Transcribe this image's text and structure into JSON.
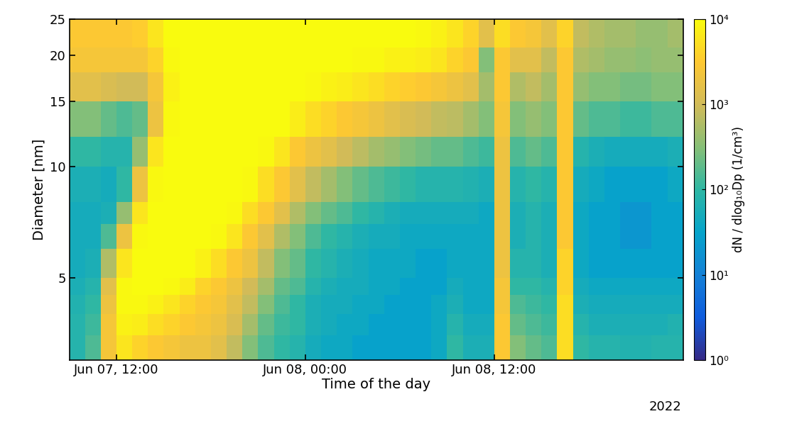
{
  "chart_data": {
    "type": "heatmap",
    "x_label": "Time of the day",
    "y_label": "Diameter [nm]",
    "annotation": "2022",
    "log": "y",
    "xlim": [
      "2022-06-07 09:00",
      "2022-06-09 00:00"
    ],
    "xticks": [
      {
        "value": "2022-06-07 12:00",
        "label": "Jun 07, 12:00"
      },
      {
        "value": "2022-06-08 00:00",
        "label": "Jun 08, 00:00"
      },
      {
        "value": "2022-06-08 12:00",
        "label": "Jun 08, 12:00"
      }
    ],
    "ylim": [
      3,
      25
    ],
    "yticks": [
      5,
      10,
      15,
      20,
      25
    ],
    "colorbar": {
      "label": "dN / dlog₁₀Dp (1/cm³)",
      "log": true,
      "range": [
        1,
        10000
      ],
      "ticks": [
        {
          "value": 1,
          "label": "10⁰"
        },
        {
          "value": 10,
          "label": "10¹"
        },
        {
          "value": 100,
          "label": "10²"
        },
        {
          "value": 1000,
          "label": "10³"
        },
        {
          "value": 10000,
          "label": "10⁴"
        }
      ]
    },
    "time_edges": [
      "2022-06-07 09:00",
      "2022-06-07 10:00",
      "2022-06-07 11:00",
      "2022-06-07 12:00",
      "2022-06-07 13:00",
      "2022-06-07 14:00",
      "2022-06-07 15:00",
      "2022-06-07 16:00",
      "2022-06-07 17:00",
      "2022-06-07 18:00",
      "2022-06-07 19:00",
      "2022-06-07 20:00",
      "2022-06-07 21:00",
      "2022-06-07 22:00",
      "2022-06-07 23:00",
      "2022-06-08 00:00",
      "2022-06-08 01:00",
      "2022-06-08 02:00",
      "2022-06-08 03:00",
      "2022-06-08 04:00",
      "2022-06-08 05:00",
      "2022-06-08 06:00",
      "2022-06-08 07:00",
      "2022-06-08 08:00",
      "2022-06-08 09:00",
      "2022-06-08 10:00",
      "2022-06-08 11:00",
      "2022-06-08 12:00",
      "2022-06-08 13:00",
      "2022-06-08 14:00",
      "2022-06-08 15:00",
      "2022-06-08 16:00",
      "2022-06-08 17:00",
      "2022-06-08 18:00",
      "2022-06-08 19:00",
      "2022-06-08 20:00",
      "2022-06-08 21:00",
      "2022-06-08 22:00",
      "2022-06-08 23:00",
      "2022-06-09 00:00"
    ],
    "diameter_edges": [
      3,
      3.5,
      4,
      4.5,
      5,
      6,
      7,
      8,
      10,
      12,
      15,
      18,
      21,
      25
    ],
    "values": [
      [
        80,
        80,
        70,
        60,
        50,
        50,
        50,
        60,
        100,
        300,
        1500,
        2500,
        3000
      ],
      [
        150,
        120,
        100,
        80,
        60,
        50,
        50,
        60,
        100,
        300,
        1500,
        2500,
        3000
      ],
      [
        2500,
        2500,
        2000,
        1500,
        600,
        150,
        60,
        50,
        80,
        200,
        1200,
        2500,
        3000
      ],
      [
        6000,
        8000,
        9000,
        9000,
        6000,
        2000,
        400,
        100,
        80,
        150,
        1000,
        2500,
        3000
      ],
      [
        4000,
        7000,
        9000,
        10000,
        10000,
        9000,
        6000,
        2000,
        400,
        200,
        1000,
        2500,
        3500
      ],
      [
        3000,
        5000,
        8000,
        10000,
        10000,
        10000,
        10000,
        9000,
        6000,
        2000,
        2500,
        4000,
        6000
      ],
      [
        2500,
        4000,
        6000,
        9000,
        10000,
        10000,
        10000,
        10000,
        10000,
        9000,
        8000,
        9000,
        10000
      ],
      [
        2000,
        3000,
        4000,
        7000,
        10000,
        10000,
        10000,
        10000,
        10000,
        10000,
        10000,
        10000,
        10000
      ],
      [
        2000,
        2500,
        3000,
        4000,
        8000,
        10000,
        10000,
        10000,
        10000,
        10000,
        10000,
        10000,
        10000
      ],
      [
        1500,
        2000,
        2500,
        3000,
        5000,
        9000,
        10000,
        10000,
        10000,
        10000,
        10000,
        10000,
        10000
      ],
      [
        800,
        1200,
        1500,
        2000,
        3000,
        6000,
        9000,
        10000,
        10000,
        10000,
        10000,
        10000,
        10000
      ],
      [
        300,
        500,
        800,
        1000,
        2000,
        3000,
        5000,
        9000,
        10000,
        10000,
        10000,
        10000,
        10000
      ],
      [
        150,
        200,
        300,
        500,
        800,
        1500,
        3000,
        5000,
        9000,
        10000,
        10000,
        10000,
        10000
      ],
      [
        100,
        120,
        150,
        200,
        300,
        600,
        1500,
        3000,
        6000,
        10000,
        10000,
        10000,
        10000
      ],
      [
        80,
        100,
        100,
        150,
        200,
        300,
        600,
        1500,
        3000,
        7000,
        10000,
        10000,
        10000
      ],
      [
        50,
        60,
        60,
        80,
        100,
        150,
        300,
        800,
        2000,
        5000,
        9000,
        10000,
        10000
      ],
      [
        40,
        50,
        50,
        60,
        80,
        100,
        200,
        500,
        1500,
        4000,
        8000,
        10000,
        10000
      ],
      [
        40,
        40,
        50,
        50,
        60,
        80,
        150,
        300,
        1000,
        3000,
        7000,
        10000,
        10000
      ],
      [
        30,
        40,
        40,
        50,
        50,
        60,
        100,
        200,
        700,
        2500,
        6000,
        9000,
        10000
      ],
      [
        30,
        30,
        40,
        40,
        40,
        50,
        80,
        150,
        500,
        2000,
        5000,
        9000,
        10000
      ],
      [
        30,
        30,
        30,
        40,
        40,
        50,
        60,
        120,
        400,
        1500,
        4000,
        8000,
        10000
      ],
      [
        30,
        30,
        30,
        30,
        40,
        40,
        50,
        100,
        300,
        1200,
        3500,
        8000,
        10000
      ],
      [
        30,
        30,
        30,
        30,
        30,
        40,
        50,
        80,
        250,
        1000,
        3000,
        7000,
        9000
      ],
      [
        40,
        40,
        40,
        30,
        30,
        40,
        50,
        80,
        200,
        800,
        2500,
        6000,
        8000
      ],
      [
        100,
        80,
        60,
        50,
        40,
        40,
        50,
        80,
        200,
        700,
        2000,
        4000,
        6000
      ],
      [
        60,
        50,
        40,
        40,
        40,
        40,
        50,
        70,
        150,
        500,
        1500,
        3000,
        4000
      ],
      [
        60,
        50,
        40,
        40,
        40,
        40,
        40,
        60,
        120,
        300,
        500,
        300,
        1500
      ],
      [
        3000,
        3000,
        2500,
        2500,
        2000,
        2000,
        2000,
        2000,
        2000,
        2500,
        3000,
        3000,
        5000
      ],
      [
        300,
        200,
        150,
        100,
        80,
        60,
        60,
        80,
        150,
        300,
        600,
        1500,
        3000
      ],
      [
        200,
        150,
        120,
        100,
        80,
        80,
        80,
        100,
        200,
        400,
        800,
        1500,
        2500
      ],
      [
        150,
        120,
        100,
        80,
        60,
        60,
        60,
        80,
        150,
        300,
        500,
        800,
        1500
      ],
      [
        5000,
        5000,
        5000,
        4000,
        4000,
        3000,
        3000,
        3000,
        3000,
        3000,
        3000,
        3000,
        4000
      ],
      [
        100,
        80,
        60,
        50,
        40,
        40,
        40,
        50,
        80,
        200,
        400,
        600,
        800
      ],
      [
        80,
        60,
        50,
        40,
        30,
        30,
        30,
        40,
        60,
        150,
        300,
        500,
        600
      ],
      [
        80,
        60,
        50,
        40,
        30,
        30,
        30,
        30,
        50,
        150,
        300,
        400,
        500
      ],
      [
        70,
        60,
        50,
        40,
        30,
        20,
        20,
        30,
        50,
        120,
        250,
        400,
        500
      ],
      [
        70,
        60,
        50,
        40,
        30,
        20,
        20,
        30,
        50,
        120,
        250,
        350,
        400
      ],
      [
        80,
        60,
        50,
        40,
        30,
        30,
        30,
        30,
        50,
        150,
        300,
        400,
        400
      ],
      [
        80,
        70,
        50,
        40,
        30,
        30,
        30,
        40,
        60,
        150,
        300,
        400,
        500
      ]
    ]
  }
}
